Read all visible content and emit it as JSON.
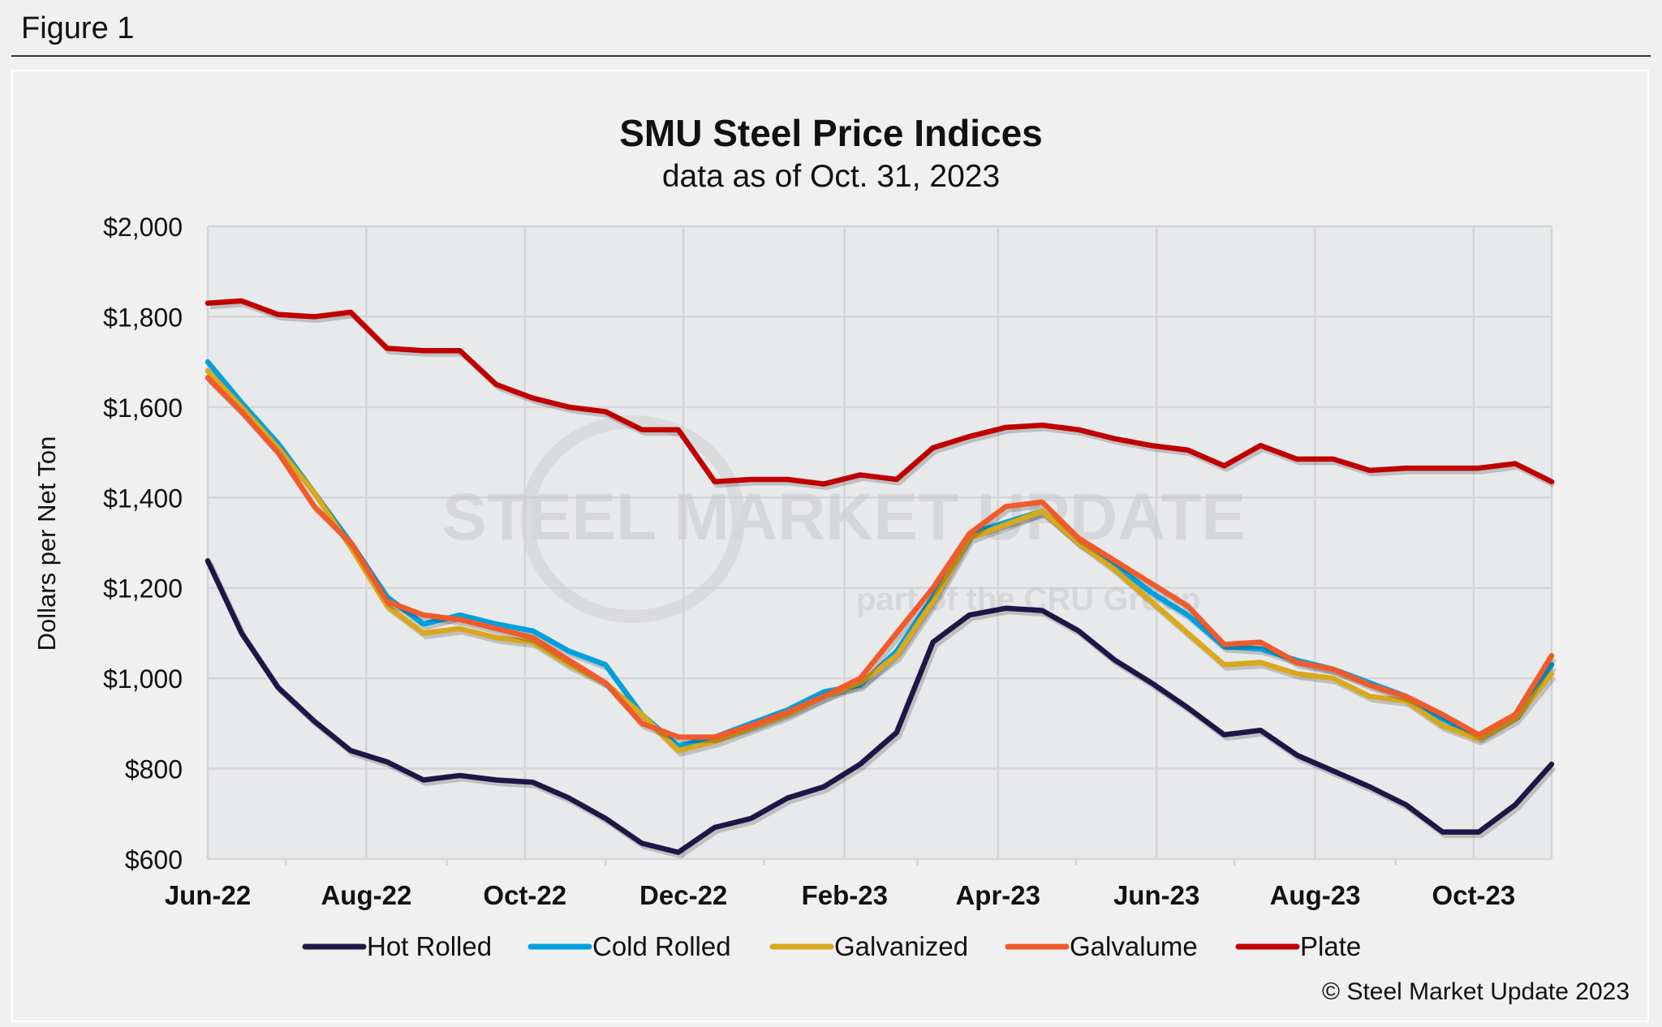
{
  "figure_label": "Figure 1",
  "watermark": {
    "line1": "STEEL MARKET UPDATE",
    "line2": "part of the CRU Group"
  },
  "copyright": "© Steel Market Update 2023",
  "chart_data": {
    "type": "line",
    "title": "SMU Steel Price Indices",
    "subtitle": "data as of Oct. 31, 2023",
    "xlabel": "",
    "ylabel": "Dollars per Net Ton",
    "ylim": [
      600,
      2000
    ],
    "yticks": [
      "$600",
      "$800",
      "$1,000",
      "$1,200",
      "$1,400",
      "$1,600",
      "$1,800",
      "$2,000"
    ],
    "ytick_values": [
      600,
      800,
      1000,
      1200,
      1400,
      1600,
      1800,
      2000
    ],
    "xticks": [
      "Jun-22",
      "Aug-22",
      "Oct-22",
      "Dec-22",
      "Feb-23",
      "Apr-23",
      "Jun-23",
      "Aug-23",
      "Oct-23"
    ],
    "xtick_dates": [
      "2022-06-01",
      "2022-08-01",
      "2022-10-01",
      "2022-12-01",
      "2023-02-01",
      "2023-04-01",
      "2023-06-01",
      "2023-08-01",
      "2023-10-01"
    ],
    "xlim": [
      "2022-06-01",
      "2023-10-31"
    ],
    "grid": true,
    "legend_position": "bottom",
    "x": [
      "2022-05-31",
      "2022-06-14",
      "2022-06-28",
      "2022-07-12",
      "2022-07-26",
      "2022-08-09",
      "2022-08-23",
      "2022-09-06",
      "2022-09-20",
      "2022-10-04",
      "2022-10-18",
      "2022-11-01",
      "2022-11-15",
      "2022-11-29",
      "2022-12-13",
      "2022-12-27",
      "2023-01-10",
      "2023-01-24",
      "2023-02-07",
      "2023-02-21",
      "2023-03-07",
      "2023-03-21",
      "2023-04-04",
      "2023-04-18",
      "2023-05-02",
      "2023-05-16",
      "2023-05-30",
      "2023-06-13",
      "2023-06-27",
      "2023-07-11",
      "2023-07-25",
      "2023-08-08",
      "2023-08-22",
      "2023-09-05",
      "2023-09-19",
      "2023-10-03",
      "2023-10-17",
      "2023-10-31"
    ],
    "series": [
      {
        "name": "Hot Rolled",
        "color": "#1e1646",
        "values": [
          1260,
          1100,
          980,
          905,
          840,
          815,
          775,
          785,
          775,
          770,
          735,
          690,
          635,
          615,
          670,
          690,
          735,
          760,
          810,
          880,
          1080,
          1140,
          1155,
          1150,
          1105,
          1040,
          990,
          935,
          875,
          885,
          830,
          795,
          760,
          720,
          660,
          660,
          720,
          810
        ]
      },
      {
        "name": "Cold Rolled",
        "color": "#00a0dd",
        "values": [
          1700,
          1610,
          1520,
          1410,
          1300,
          1180,
          1120,
          1140,
          1120,
          1105,
          1060,
          1030,
          920,
          850,
          870,
          900,
          930,
          970,
          985,
          1060,
          1180,
          1320,
          1345,
          1370,
          1300,
          1250,
          1190,
          1140,
          1070,
          1065,
          1040,
          1020,
          990,
          960,
          910,
          870,
          920,
          1030
        ]
      },
      {
        "name": "Galvanized",
        "color": "#d9a81b",
        "values": [
          1680,
          1600,
          1510,
          1410,
          1290,
          1160,
          1100,
          1110,
          1090,
          1080,
          1030,
          990,
          920,
          840,
          860,
          890,
          920,
          960,
          990,
          1050,
          1170,
          1310,
          1340,
          1370,
          1300,
          1240,
          1170,
          1100,
          1030,
          1035,
          1010,
          1000,
          960,
          950,
          895,
          865,
          910,
          1010
        ]
      },
      {
        "name": "Galvalume",
        "color": "#f15a2b",
        "values": [
          1665,
          1590,
          1500,
          1380,
          1300,
          1170,
          1140,
          1130,
          1110,
          1090,
          1040,
          990,
          900,
          870,
          870,
          895,
          925,
          960,
          1000,
          1100,
          1200,
          1320,
          1380,
          1390,
          1310,
          1260,
          1210,
          1160,
          1075,
          1080,
          1035,
          1020,
          985,
          960,
          920,
          875,
          920,
          1050
        ]
      },
      {
        "name": "Plate",
        "color": "#c00000",
        "values": [
          1830,
          1835,
          1805,
          1800,
          1810,
          1730,
          1725,
          1725,
          1650,
          1620,
          1600,
          1590,
          1550,
          1550,
          1435,
          1440,
          1440,
          1430,
          1450,
          1440,
          1510,
          1535,
          1555,
          1560,
          1550,
          1530,
          1515,
          1505,
          1470,
          1515,
          1485,
          1485,
          1460,
          1465,
          1465,
          1465,
          1475,
          1435
        ]
      }
    ]
  }
}
